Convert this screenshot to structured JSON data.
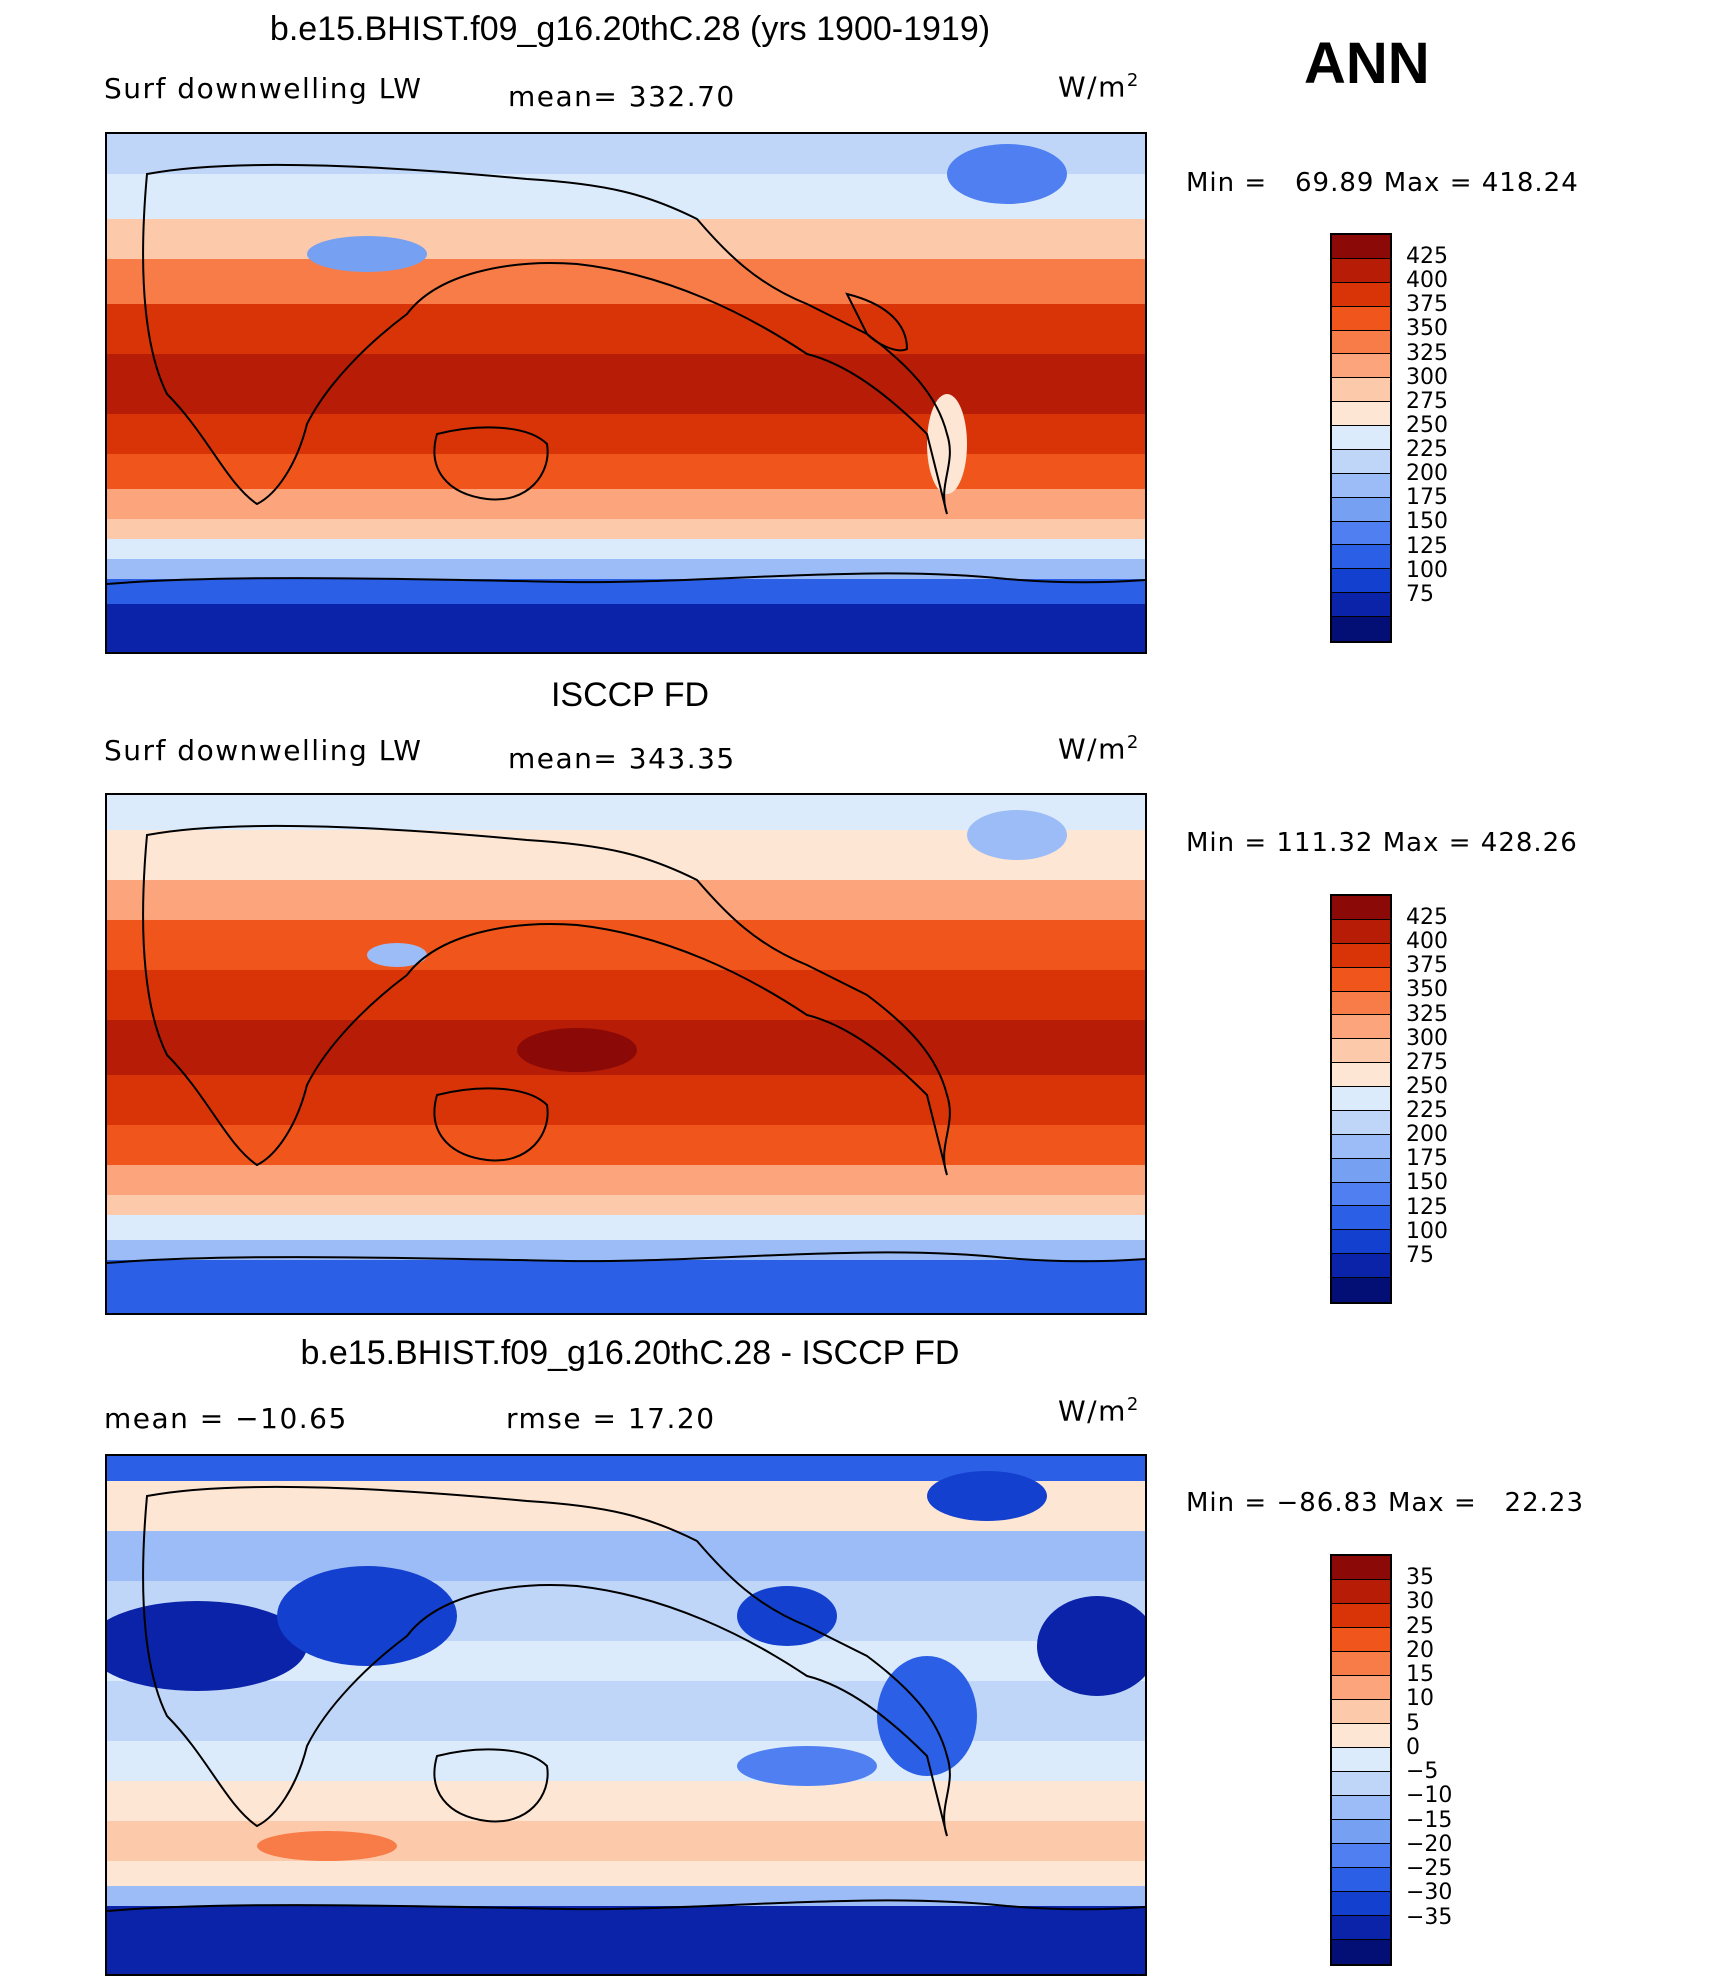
{
  "season": "ANN",
  "panels": [
    {
      "title": "b.e15.BHIST.f09_g16.20thC.28 (yrs 1900-1919)",
      "left_label": "Surf downwelling LW",
      "center_label": "mean= 332.70",
      "units": "W/m",
      "units_exp": "2",
      "min_label": "Min =",
      "min_value": "69.89",
      "max_label": "Max =",
      "max_value": "418.24",
      "colorbar_labels": [
        "425",
        "400",
        "375",
        "350",
        "325",
        "300",
        "275",
        "250",
        "225",
        "200",
        "175",
        "150",
        "125",
        "100",
        "75"
      ],
      "colorbar_colors": [
        "#8b0a07",
        "#b71c06",
        "#d93408",
        "#f0561c",
        "#f87c48",
        "#fca47c",
        "#fdc9ab",
        "#fee6d4",
        "#dcebfb",
        "#c0d6f8",
        "#9bbcf6",
        "#76a0f1",
        "#4f7ff0",
        "#2b5fe6",
        "#1440cf",
        "#0a23a8",
        "#040f75"
      ],
      "map_field": "model_lw"
    },
    {
      "title": "ISCCP FD",
      "left_label": "Surf downwelling LW",
      "center_label": "mean= 343.35",
      "units": "W/m",
      "units_exp": "2",
      "min_label": "Min =",
      "min_value": "111.32",
      "max_label": "Max =",
      "max_value": "428.26",
      "colorbar_labels": [
        "425",
        "400",
        "375",
        "350",
        "325",
        "300",
        "275",
        "250",
        "225",
        "200",
        "175",
        "150",
        "125",
        "100",
        "75"
      ],
      "colorbar_colors": [
        "#8b0a07",
        "#b71c06",
        "#d93408",
        "#f0561c",
        "#f87c48",
        "#fca47c",
        "#fdc9ab",
        "#fee6d4",
        "#dcebfb",
        "#c0d6f8",
        "#9bbcf6",
        "#76a0f1",
        "#4f7ff0",
        "#2b5fe6",
        "#1440cf",
        "#0a23a8",
        "#040f75"
      ],
      "map_field": "obs_lw"
    },
    {
      "title": "b.e15.BHIST.f09_g16.20thC.28 - ISCCP FD",
      "left_label": "mean = −10.65",
      "center_label": "rmse =   17.20",
      "units": "W/m",
      "units_exp": "2",
      "min_label": "Min =",
      "min_value": "−86.83",
      "max_label": "Max =",
      "max_value": "22.23",
      "colorbar_labels": [
        "35",
        "30",
        "25",
        "20",
        "15",
        "10",
        "5",
        "0",
        "−5",
        "−10",
        "−15",
        "−20",
        "−25",
        "−30",
        "−35"
      ],
      "colorbar_colors": [
        "#8b0a07",
        "#b71c06",
        "#d93408",
        "#f0561c",
        "#f87c48",
        "#fca47c",
        "#fdc9ab",
        "#fee6d4",
        "#dcebfb",
        "#c0d6f8",
        "#9bbcf6",
        "#76a0f1",
        "#4f7ff0",
        "#2b5fe6",
        "#1440cf",
        "#0a23a8",
        "#040f75"
      ],
      "map_field": "diff_lw"
    }
  ]
}
